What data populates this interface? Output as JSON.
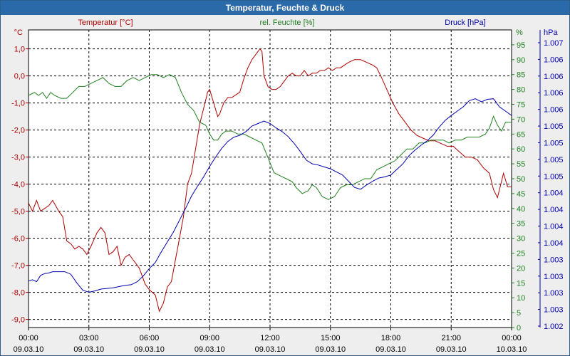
{
  "window": {
    "title": "Temperatur, Feuchte & Druck"
  },
  "colors": {
    "temperature": "#b00000",
    "humidity": "#208020",
    "pressure": "#0000b0",
    "grid": "#000000"
  },
  "chart_data": {
    "type": "line",
    "title": "Temperatur, Feuchte & Druck",
    "x_ticks": [
      {
        "time": "00:00",
        "date": "09.03.10"
      },
      {
        "time": "03:00",
        "date": "09.03.10"
      },
      {
        "time": "06:00",
        "date": "09.03.10"
      },
      {
        "time": "09:00",
        "date": "09.03.10"
      },
      {
        "time": "12:00",
        "date": "09.03.10"
      },
      {
        "time": "15:00",
        "date": "09.03.10"
      },
      {
        "time": "18:00",
        "date": "09.03.10"
      },
      {
        "time": "21:00",
        "date": "09.03.10"
      },
      {
        "time": "00:00",
        "date": "10.03.10"
      }
    ],
    "x_range_hours": [
      0,
      24
    ],
    "axes": {
      "temperature": {
        "unit": "°C",
        "label": "Temperatur [°C]",
        "range": [
          -9.3,
          1.7
        ],
        "ticks": [
          "1,0",
          "0,0",
          "-1,0",
          "-2,0",
          "-3,0",
          "-4,0",
          "-5,0",
          "-6,0",
          "-7,0",
          "-8,0",
          "-9,0"
        ]
      },
      "humidity": {
        "unit": "%",
        "label": "rel. Feuchte [%]",
        "range": [
          0,
          100
        ],
        "ticks": [
          "95",
          "90",
          "85",
          "80",
          "75",
          "70",
          "65",
          "60",
          "55",
          "50",
          "45",
          "40",
          "35",
          "30",
          "25",
          "20",
          "15",
          "10",
          "5",
          "0"
        ]
      },
      "pressure": {
        "unit": "hPa",
        "label": "Druck [hPa]",
        "range": [
          1002.5,
          1007.3
        ],
        "ticks": [
          "1.007",
          "1.006",
          "1.006",
          "1.006",
          "1.006",
          "1.005",
          "1.005",
          "1.005",
          "1.005",
          "1.004",
          "1.004",
          "1.004",
          "1.004",
          "1.003",
          "1.003",
          "1.003",
          "1.003",
          "1.002"
        ]
      }
    },
    "series": [
      {
        "name": "Temperatur [°C]",
        "axis": "temperature",
        "color": "#b00000",
        "points": [
          [
            0,
            -4.7
          ],
          [
            0.2,
            -5.0
          ],
          [
            0.4,
            -4.6
          ],
          [
            0.6,
            -5.0
          ],
          [
            0.8,
            -4.9
          ],
          [
            1.0,
            -4.8
          ],
          [
            1.2,
            -4.6
          ],
          [
            1.5,
            -5.0
          ],
          [
            1.7,
            -5.2
          ],
          [
            1.9,
            -6.1
          ],
          [
            2.1,
            -6.2
          ],
          [
            2.3,
            -6.4
          ],
          [
            2.5,
            -6.3
          ],
          [
            2.7,
            -6.4
          ],
          [
            2.9,
            -6.6
          ],
          [
            3.1,
            -6.3
          ],
          [
            3.4,
            -5.8
          ],
          [
            3.6,
            -5.6
          ],
          [
            3.8,
            -5.8
          ],
          [
            4.0,
            -6.6
          ],
          [
            4.2,
            -6.5
          ],
          [
            4.4,
            -6.3
          ],
          [
            4.6,
            -7.0
          ],
          [
            4.8,
            -6.7
          ],
          [
            5.0,
            -6.6
          ],
          [
            5.2,
            -6.8
          ],
          [
            5.5,
            -7.1
          ],
          [
            5.8,
            -7.7
          ],
          [
            6.0,
            -7.9
          ],
          [
            6.3,
            -8.1
          ],
          [
            6.5,
            -8.7
          ],
          [
            6.7,
            -8.4
          ],
          [
            6.9,
            -7.8
          ],
          [
            7.1,
            -7.6
          ],
          [
            7.3,
            -6.8
          ],
          [
            7.5,
            -6.0
          ],
          [
            7.7,
            -5.2
          ],
          [
            7.9,
            -4.0
          ],
          [
            8.1,
            -3.6
          ],
          [
            8.3,
            -2.7
          ],
          [
            8.5,
            -1.8
          ],
          [
            8.7,
            -1.2
          ],
          [
            8.9,
            -0.6
          ],
          [
            9.0,
            -0.5
          ],
          [
            9.2,
            -1.0
          ],
          [
            9.4,
            -1.5
          ],
          [
            9.5,
            -1.4
          ],
          [
            9.7,
            -1.0
          ],
          [
            9.9,
            -0.8
          ],
          [
            10.1,
            -0.8
          ],
          [
            10.3,
            -0.7
          ],
          [
            10.5,
            -0.6
          ],
          [
            10.7,
            -0.1
          ],
          [
            10.9,
            0.3
          ],
          [
            11.1,
            0.6
          ],
          [
            11.3,
            0.8
          ],
          [
            11.5,
            1.0
          ],
          [
            11.6,
            0.9
          ],
          [
            11.7,
            0.0
          ],
          [
            11.9,
            -0.4
          ],
          [
            12.1,
            -0.5
          ],
          [
            12.3,
            -0.5
          ],
          [
            12.5,
            -0.4
          ],
          [
            12.7,
            -0.2
          ],
          [
            12.9,
            0.0
          ],
          [
            13.1,
            0.1
          ],
          [
            13.3,
            0.0
          ],
          [
            13.5,
            0.0
          ],
          [
            13.7,
            0.2
          ],
          [
            13.9,
            0.0
          ],
          [
            14.1,
            0.1
          ],
          [
            14.3,
            0.1
          ],
          [
            14.5,
            0.2
          ],
          [
            14.7,
            0.2
          ],
          [
            14.9,
            0.3
          ],
          [
            15.1,
            0.2
          ],
          [
            15.3,
            0.3
          ],
          [
            15.5,
            0.3
          ],
          [
            15.7,
            0.4
          ],
          [
            15.9,
            0.5
          ],
          [
            16.2,
            0.6
          ],
          [
            16.5,
            0.6
          ],
          [
            16.8,
            0.5
          ],
          [
            17.1,
            0.4
          ],
          [
            17.3,
            0.3
          ],
          [
            17.5,
            0.0
          ],
          [
            17.8,
            -0.5
          ],
          [
            18.1,
            -1.0
          ],
          [
            18.4,
            -1.4
          ],
          [
            18.7,
            -1.7
          ],
          [
            19.0,
            -2.0
          ],
          [
            19.3,
            -2.2
          ],
          [
            19.6,
            -2.3
          ],
          [
            19.9,
            -2.4
          ],
          [
            20.2,
            -2.4
          ],
          [
            20.5,
            -2.5
          ],
          [
            20.8,
            -2.6
          ],
          [
            21.1,
            -2.6
          ],
          [
            21.4,
            -2.8
          ],
          [
            21.7,
            -3.0
          ],
          [
            22.0,
            -3.0
          ],
          [
            22.3,
            -3.1
          ],
          [
            22.6,
            -3.4
          ],
          [
            22.9,
            -3.6
          ],
          [
            23.1,
            -4.2
          ],
          [
            23.3,
            -4.5
          ],
          [
            23.5,
            -3.9
          ],
          [
            23.6,
            -3.6
          ],
          [
            23.8,
            -4.1
          ],
          [
            24.0,
            -4.1
          ]
        ]
      },
      {
        "name": "rel. Feuchte [%]",
        "axis": "humidity",
        "color": "#208020",
        "points": [
          [
            0,
            78
          ],
          [
            0.3,
            79
          ],
          [
            0.5,
            78
          ],
          [
            0.7,
            79
          ],
          [
            0.9,
            77
          ],
          [
            1.1,
            79
          ],
          [
            1.3,
            78
          ],
          [
            1.6,
            77
          ],
          [
            1.9,
            77
          ],
          [
            2.2,
            79
          ],
          [
            2.5,
            81
          ],
          [
            2.8,
            81
          ],
          [
            3.1,
            82
          ],
          [
            3.4,
            83
          ],
          [
            3.7,
            84
          ],
          [
            4.0,
            82
          ],
          [
            4.3,
            81
          ],
          [
            4.6,
            81
          ],
          [
            4.9,
            83
          ],
          [
            5.2,
            84
          ],
          [
            5.5,
            83
          ],
          [
            5.8,
            84
          ],
          [
            6.1,
            85
          ],
          [
            6.4,
            85
          ],
          [
            6.7,
            84
          ],
          [
            7.0,
            85
          ],
          [
            7.3,
            84
          ],
          [
            7.6,
            79
          ],
          [
            7.9,
            75
          ],
          [
            8.2,
            73
          ],
          [
            8.5,
            69
          ],
          [
            8.8,
            68
          ],
          [
            9.0,
            65
          ],
          [
            9.2,
            63
          ],
          [
            9.4,
            63
          ],
          [
            9.6,
            65
          ],
          [
            9.8,
            66
          ],
          [
            10.1,
            66
          ],
          [
            10.4,
            65
          ],
          [
            10.7,
            65
          ],
          [
            11.0,
            64
          ],
          [
            11.3,
            63
          ],
          [
            11.6,
            62
          ],
          [
            11.9,
            57
          ],
          [
            12.2,
            52
          ],
          [
            12.5,
            51
          ],
          [
            12.8,
            50
          ],
          [
            13.1,
            49
          ],
          [
            13.3,
            47
          ],
          [
            13.6,
            45
          ],
          [
            13.9,
            46
          ],
          [
            14.1,
            48
          ],
          [
            14.3,
            47
          ],
          [
            14.6,
            44
          ],
          [
            14.9,
            43
          ],
          [
            15.2,
            44
          ],
          [
            15.5,
            47
          ],
          [
            15.8,
            48
          ],
          [
            16.1,
            48
          ],
          [
            16.4,
            49
          ],
          [
            16.7,
            50
          ],
          [
            17.0,
            50
          ],
          [
            17.3,
            53
          ],
          [
            17.6,
            54
          ],
          [
            17.9,
            55
          ],
          [
            18.2,
            56
          ],
          [
            18.5,
            58
          ],
          [
            18.8,
            60
          ],
          [
            19.1,
            60
          ],
          [
            19.4,
            62
          ],
          [
            19.7,
            62
          ],
          [
            20.0,
            63
          ],
          [
            20.3,
            63
          ],
          [
            20.6,
            63
          ],
          [
            20.9,
            62
          ],
          [
            21.2,
            63
          ],
          [
            21.5,
            63
          ],
          [
            21.8,
            64
          ],
          [
            22.1,
            64
          ],
          [
            22.4,
            64
          ],
          [
            22.7,
            65
          ],
          [
            22.9,
            67
          ],
          [
            23.1,
            71
          ],
          [
            23.3,
            68
          ],
          [
            23.5,
            66
          ],
          [
            23.7,
            69
          ],
          [
            24.0,
            69
          ]
        ]
      },
      {
        "name": "Druck [hPa]",
        "axis": "pressure",
        "color": "#0000b0",
        "points": [
          [
            0,
            1003.25
          ],
          [
            0.2,
            1003.27
          ],
          [
            0.4,
            1003.24
          ],
          [
            0.6,
            1003.34
          ],
          [
            0.8,
            1003.37
          ],
          [
            1.0,
            1003.38
          ],
          [
            1.2,
            1003.4
          ],
          [
            1.5,
            1003.4
          ],
          [
            1.8,
            1003.4
          ],
          [
            2.1,
            1003.36
          ],
          [
            2.4,
            1003.22
          ],
          [
            2.7,
            1003.1
          ],
          [
            3.0,
            1003.07
          ],
          [
            3.3,
            1003.09
          ],
          [
            3.6,
            1003.12
          ],
          [
            3.9,
            1003.13
          ],
          [
            4.2,
            1003.14
          ],
          [
            4.5,
            1003.16
          ],
          [
            4.8,
            1003.18
          ],
          [
            5.1,
            1003.19
          ],
          [
            5.4,
            1003.24
          ],
          [
            5.7,
            1003.33
          ],
          [
            6.0,
            1003.45
          ],
          [
            6.3,
            1003.55
          ],
          [
            6.6,
            1003.72
          ],
          [
            6.9,
            1003.88
          ],
          [
            7.2,
            1004.04
          ],
          [
            7.5,
            1004.23
          ],
          [
            7.8,
            1004.42
          ],
          [
            8.1,
            1004.62
          ],
          [
            8.4,
            1004.78
          ],
          [
            8.7,
            1004.93
          ],
          [
            9.0,
            1005.1
          ],
          [
            9.3,
            1005.25
          ],
          [
            9.6,
            1005.39
          ],
          [
            9.9,
            1005.5
          ],
          [
            10.2,
            1005.57
          ],
          [
            10.5,
            1005.6
          ],
          [
            10.8,
            1005.66
          ],
          [
            11.1,
            1005.75
          ],
          [
            11.4,
            1005.79
          ],
          [
            11.7,
            1005.83
          ],
          [
            12.0,
            1005.79
          ],
          [
            12.3,
            1005.72
          ],
          [
            12.6,
            1005.66
          ],
          [
            12.9,
            1005.58
          ],
          [
            13.2,
            1005.47
          ],
          [
            13.5,
            1005.34
          ],
          [
            13.8,
            1005.2
          ],
          [
            14.1,
            1005.14
          ],
          [
            14.4,
            1005.12
          ],
          [
            14.7,
            1005.09
          ],
          [
            15.0,
            1005.06
          ],
          [
            15.3,
            1005.01
          ],
          [
            15.6,
            1004.96
          ],
          [
            15.9,
            1004.86
          ],
          [
            16.2,
            1004.76
          ],
          [
            16.5,
            1004.73
          ],
          [
            16.8,
            1004.8
          ],
          [
            17.1,
            1004.86
          ],
          [
            17.4,
            1004.91
          ],
          [
            17.7,
            1004.93
          ],
          [
            18.0,
            1004.96
          ],
          [
            18.3,
            1005.05
          ],
          [
            18.6,
            1005.14
          ],
          [
            18.9,
            1005.27
          ],
          [
            19.2,
            1005.36
          ],
          [
            19.5,
            1005.44
          ],
          [
            19.8,
            1005.51
          ],
          [
            20.1,
            1005.6
          ],
          [
            20.4,
            1005.73
          ],
          [
            20.7,
            1005.84
          ],
          [
            21.0,
            1005.92
          ],
          [
            21.3,
            1005.99
          ],
          [
            21.6,
            1006.06
          ],
          [
            21.9,
            1006.16
          ],
          [
            22.2,
            1006.19
          ],
          [
            22.5,
            1006.14
          ],
          [
            22.8,
            1006.18
          ],
          [
            23.1,
            1006.19
          ],
          [
            23.4,
            1006.06
          ],
          [
            23.7,
            1005.99
          ],
          [
            24.0,
            1005.92
          ]
        ]
      }
    ]
  }
}
